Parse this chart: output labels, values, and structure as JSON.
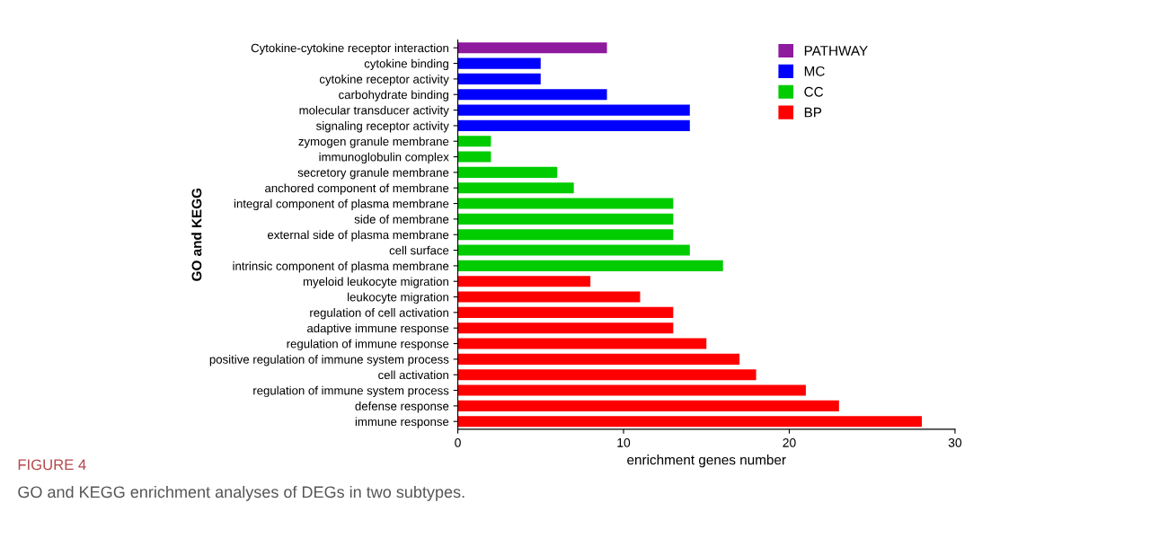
{
  "chart_data": {
    "type": "bar",
    "orientation": "horizontal",
    "ylabel": "GO and KEGG",
    "xlabel": "enrichment genes number",
    "categories": [
      "Cytokine-cytokine receptor interaction",
      "cytokine binding",
      "cytokine receptor activity",
      "carbohydrate binding",
      "molecular transducer activity",
      "signaling receptor activity",
      "zymogen granule membrane",
      "immunoglobulin complex",
      "secretory granule membrane",
      "anchored component of membrane",
      "integral component of plasma membrane",
      "side of membrane",
      "external side of plasma membrane",
      "cell surface",
      "intrinsic component of plasma membrane",
      "myeloid leukocyte migration",
      "leukocyte migration",
      "regulation of cell activation",
      "adaptive immune response",
      "regulation of immune response",
      "positive regulation of immune system process",
      "cell activation",
      "regulation of immune system process",
      "defense response",
      "immune response"
    ],
    "series": [
      {
        "name": "PATHWAY",
        "color": "#8e1a9e",
        "values": [
          9,
          null,
          null,
          null,
          null,
          null,
          null,
          null,
          null,
          null,
          null,
          null,
          null,
          null,
          null,
          null,
          null,
          null,
          null,
          null,
          null,
          null,
          null,
          null,
          null
        ]
      },
      {
        "name": "MC",
        "color": "#0000ff",
        "values": [
          null,
          5,
          5,
          9,
          14,
          14,
          null,
          null,
          null,
          null,
          null,
          null,
          null,
          null,
          null,
          null,
          null,
          null,
          null,
          null,
          null,
          null,
          null,
          null,
          null
        ]
      },
      {
        "name": "CC",
        "color": "#00cc00",
        "values": [
          null,
          null,
          null,
          null,
          null,
          null,
          2,
          2,
          6,
          7,
          13,
          13,
          13,
          14,
          16,
          null,
          null,
          null,
          null,
          null,
          null,
          null,
          null,
          null,
          null
        ]
      },
      {
        "name": "BP",
        "color": "#ff0000",
        "values": [
          null,
          null,
          null,
          null,
          null,
          null,
          null,
          null,
          null,
          null,
          null,
          null,
          null,
          null,
          null,
          8,
          11,
          13,
          13,
          15,
          17,
          18,
          21,
          23,
          28
        ]
      }
    ],
    "xlim": [
      0,
      30
    ],
    "xticks": [
      0,
      10,
      20,
      30
    ],
    "grid": false,
    "legend": "top right",
    "annotations": [
      "FIGURE 4",
      "GO and KEGG enrichment analyses of DEGs in two subtypes."
    ]
  }
}
